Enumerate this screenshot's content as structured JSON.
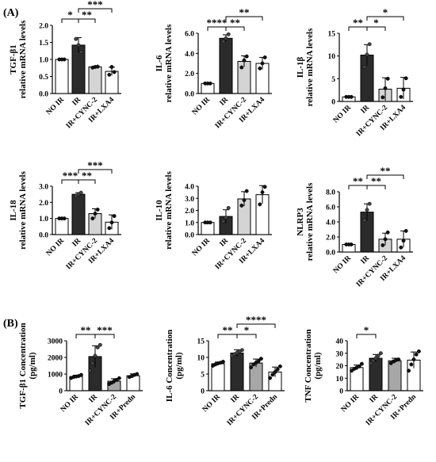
{
  "panel_labels": [
    "(A)",
    "(B)"
  ],
  "colors": {
    "white": "#ffffff",
    "black": "#2b2b2b",
    "light_gray": "#d4d4d4",
    "mid_gray": "#a7a7a7",
    "line": "#000000"
  },
  "chart_data": [
    {
      "type": "bar",
      "panel": "A",
      "ylabel_lines": [
        "TGF-β1",
        "relative mRNA levels"
      ],
      "ylim": [
        0,
        2.0
      ],
      "ticks": [
        "0.0",
        "0.5",
        "1.0",
        "1.5",
        "2.0"
      ],
      "categories": [
        "NO IR",
        "IR",
        "IR+CYNC-2",
        "IR+LXA4"
      ],
      "values": [
        1.0,
        1.42,
        0.78,
        0.65
      ],
      "errors": [
        0.0,
        0.22,
        0.02,
        0.12
      ],
      "points": [
        [
          1.0,
          1.0,
          1.0
        ],
        [
          1.6,
          1.42,
          1.22
        ],
        [
          0.76,
          0.78,
          0.79
        ],
        [
          0.55,
          0.78,
          0.63
        ]
      ],
      "colors": [
        "white",
        "black",
        "light_gray",
        "white"
      ],
      "significance": [
        {
          "from": 0,
          "to": 1,
          "label": "*",
          "level": 0
        },
        {
          "from": 1,
          "to": 2,
          "label": "**",
          "level": 0
        },
        {
          "from": 1,
          "to": 3,
          "label": "***",
          "level": 1
        }
      ]
    },
    {
      "type": "bar",
      "panel": "A",
      "ylabel_lines": [
        "IL-6",
        "relative mRNA levels"
      ],
      "ylim": [
        0,
        6.0
      ],
      "ticks": [
        "0.0",
        "2.0",
        "4.0",
        "6.0"
      ],
      "categories": [
        "NO IR",
        "IR",
        "IR+CYNC-2",
        "IR+LXA4"
      ],
      "values": [
        1.0,
        5.5,
        3.2,
        3.0
      ],
      "errors": [
        0.0,
        0.35,
        0.55,
        0.6
      ],
      "points": [
        [
          1.0,
          1.0,
          1.0
        ],
        [
          5.2,
          5.5,
          5.9
        ],
        [
          2.6,
          3.3,
          3.7
        ],
        [
          2.5,
          3.0,
          3.6
        ]
      ],
      "colors": [
        "white",
        "black",
        "light_gray",
        "white"
      ],
      "significance": [
        {
          "from": 0,
          "to": 1,
          "label": "****",
          "level": 0
        },
        {
          "from": 1,
          "to": 2,
          "label": "**",
          "level": 0
        },
        {
          "from": 1,
          "to": 3,
          "label": "**",
          "level": 1
        }
      ]
    },
    {
      "type": "bar",
      "panel": "A",
      "ylabel_lines": [
        "IL-1β",
        "relative mRNA levels"
      ],
      "ylim": [
        0,
        15
      ],
      "ticks": [
        "0",
        "5",
        "10",
        "15"
      ],
      "categories": [
        "NO IR",
        "IR",
        "IR+CYNC-2",
        "IR+LXA4"
      ],
      "values": [
        1.0,
        10.2,
        2.7,
        2.9
      ],
      "errors": [
        0.0,
        2.3,
        2.5,
        2.4
      ],
      "points": [
        [
          1.0,
          1.0,
          1.0
        ],
        [
          7.6,
          10.3,
          12.6
        ],
        [
          0.9,
          2.9,
          5.0
        ],
        [
          1.0,
          2.6,
          5.1
        ]
      ],
      "colors": [
        "white",
        "black",
        "light_gray",
        "white"
      ],
      "significance": [
        {
          "from": 0,
          "to": 1,
          "label": "**",
          "level": 0
        },
        {
          "from": 1,
          "to": 2,
          "label": "*",
          "level": 0
        },
        {
          "from": 1,
          "to": 3,
          "label": "*",
          "level": 1
        }
      ]
    },
    {
      "type": "bar",
      "panel": "A",
      "ylabel_lines": [
        "IL-18",
        "relative mRNA levels"
      ],
      "ylim": [
        0,
        3.0
      ],
      "ticks": [
        "0.0",
        "1.0",
        "2.0",
        "3.0"
      ],
      "categories": [
        "NO IR",
        "IR",
        "IR+CYNC-2",
        "IR+LXA4"
      ],
      "values": [
        1.0,
        2.5,
        1.3,
        0.77
      ],
      "errors": [
        0.0,
        0.1,
        0.3,
        0.45
      ],
      "points": [
        [
          1.0,
          1.0,
          1.0
        ],
        [
          2.4,
          2.5,
          2.6
        ],
        [
          1.0,
          1.3,
          1.55
        ],
        [
          0.4,
          0.75,
          1.15
        ]
      ],
      "colors": [
        "white",
        "black",
        "light_gray",
        "white"
      ],
      "significance": [
        {
          "from": 0,
          "to": 1,
          "label": "***",
          "level": 0
        },
        {
          "from": 1,
          "to": 2,
          "label": "**",
          "level": 0
        },
        {
          "from": 1,
          "to": 3,
          "label": "***",
          "level": 1
        }
      ]
    },
    {
      "type": "bar",
      "panel": "A",
      "ylabel_lines": [
        "IL-10",
        "relative mRNA levels"
      ],
      "ylim": [
        0,
        4.0
      ],
      "ticks": [
        "0.0",
        "1.0",
        "2.0",
        "3.0",
        "4.0"
      ],
      "categories": [
        "NO IR",
        "IR",
        "IR+CYNC-2",
        "IR+LXA4"
      ],
      "values": [
        1.0,
        1.5,
        2.95,
        3.3
      ],
      "errors": [
        0.0,
        0.55,
        0.6,
        0.75
      ],
      "points": [
        [
          1.0,
          1.0,
          1.0
        ],
        [
          1.1,
          1.4,
          2.2
        ],
        [
          2.4,
          2.85,
          3.6
        ],
        [
          2.5,
          3.5,
          3.95
        ]
      ],
      "colors": [
        "white",
        "black",
        "light_gray",
        "white"
      ],
      "significance": []
    },
    {
      "type": "bar",
      "panel": "A",
      "ylabel_lines": [
        "NLRP3",
        "relative mRNA levels"
      ],
      "ylim": [
        0,
        8.0
      ],
      "ticks": [
        "0.0",
        "2.0",
        "4.0",
        "6.0",
        "8.0"
      ],
      "categories": [
        "NO IR",
        "IR",
        "IR+CYNC-2",
        "IR+LXA4"
      ],
      "values": [
        1.0,
        5.3,
        1.7,
        1.7
      ],
      "errors": [
        0.0,
        1.1,
        0.8,
        1.1
      ],
      "points": [
        [
          1.0,
          1.0,
          1.0
        ],
        [
          4.2,
          5.6,
          6.4
        ],
        [
          0.9,
          1.7,
          2.6
        ],
        [
          0.6,
          1.5,
          2.8
        ]
      ],
      "colors": [
        "white",
        "black",
        "light_gray",
        "white"
      ],
      "significance": [
        {
          "from": 0,
          "to": 1,
          "label": "**",
          "level": 0
        },
        {
          "from": 1,
          "to": 2,
          "label": "**",
          "level": 0
        },
        {
          "from": 1,
          "to": 3,
          "label": "**",
          "level": 1
        }
      ]
    },
    {
      "type": "bar",
      "panel": "B",
      "ylabel_lines": [
        "TGF-β1 Concentration",
        "(pg/ml)"
      ],
      "ylim": [
        0,
        3000
      ],
      "ticks": [
        "0",
        "1000",
        "2000",
        "3000"
      ],
      "categories": [
        "NO IR",
        "IR",
        "IR+CYNC-2",
        "IR+Predn"
      ],
      "values": [
        850,
        2050,
        570,
        900
      ],
      "errors": [
        80,
        650,
        150,
        110
      ],
      "points": [
        [
          760,
          820,
          850,
          880,
          950
        ],
        [
          1200,
          1650,
          2100,
          2600,
          2750
        ],
        [
          400,
          480,
          580,
          650,
          750
        ],
        [
          820,
          880,
          950,
          1000
        ]
      ],
      "colors": [
        "white",
        "black",
        "mid_gray",
        "white"
      ],
      "significance": [
        {
          "from": 0,
          "to": 1,
          "label": "**",
          "level": 0
        },
        {
          "from": 1,
          "to": 2,
          "label": "***",
          "level": 0
        }
      ]
    },
    {
      "type": "bar",
      "panel": "B",
      "ylabel_lines": [
        "IL-6 Concentration",
        "(pg/ml)"
      ],
      "ylim": [
        0,
        15
      ],
      "ticks": [
        "0",
        "5",
        "10",
        "15"
      ],
      "categories": [
        "NO IR",
        "IR",
        "IR+CYNC-2",
        "IR+Predn"
      ],
      "values": [
        8.1,
        11.3,
        8.3,
        5.6
      ],
      "errors": [
        0.5,
        1.0,
        1.2,
        1.5
      ],
      "points": [
        [
          7.5,
          7.9,
          8.2,
          8.4,
          8.7
        ],
        [
          10.5,
          11.0,
          11.4,
          11.8,
          12.2
        ],
        [
          7.0,
          7.9,
          8.4,
          8.9,
          9.6
        ],
        [
          3.8,
          4.8,
          5.6,
          6.4,
          7.3
        ]
      ],
      "colors": [
        "white",
        "black",
        "mid_gray",
        "white"
      ],
      "significance": [
        {
          "from": 0,
          "to": 1,
          "label": "**",
          "level": 0
        },
        {
          "from": 1,
          "to": 2,
          "label": "*",
          "level": 0
        },
        {
          "from": 1,
          "to": 3,
          "label": "****",
          "level": 1
        }
      ]
    },
    {
      "type": "bar",
      "panel": "B",
      "ylabel_lines": [
        "TNF Concentration",
        "(pg/ml)"
      ],
      "ylim": [
        0,
        40
      ],
      "ticks": [
        "0",
        "10",
        "20",
        "30",
        "40"
      ],
      "categories": [
        "NO IR",
        "IR",
        "IR+CYNC-2",
        "IR+Predn"
      ],
      "values": [
        18.5,
        26.0,
        24.0,
        24.5
      ],
      "errors": [
        2.0,
        3.0,
        2.0,
        6.5
      ],
      "points": [
        [
          16,
          17.5,
          18.5,
          19.5,
          21.5
        ],
        [
          22,
          24,
          26,
          28,
          30
        ],
        [
          22,
          23.5,
          24.5,
          25
        ],
        [
          16,
          21,
          25,
          29,
          31.5
        ]
      ],
      "colors": [
        "white",
        "black",
        "mid_gray",
        "white"
      ],
      "significance": [
        {
          "from": 0,
          "to": 1,
          "label": "*",
          "level": 0
        }
      ]
    }
  ]
}
